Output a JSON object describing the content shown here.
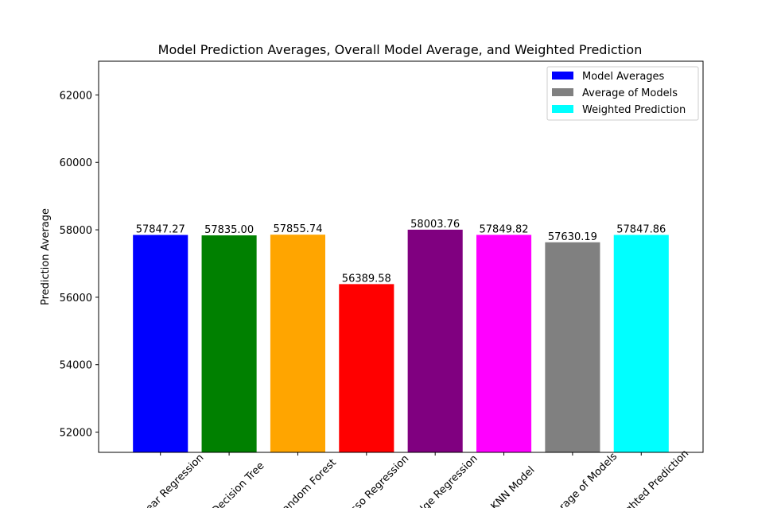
{
  "chart_data": {
    "type": "bar",
    "title": "Model Prediction Averages, Overall Model Average, and Weighted Prediction",
    "xlabel": "",
    "ylabel": "Prediction Average",
    "ylim": [
      51400,
      63000
    ],
    "yticks": [
      52000,
      54000,
      56000,
      58000,
      60000,
      62000
    ],
    "grid": false,
    "legend_position": "top-right",
    "categories": [
      "Linear Regression",
      "Decision Tree",
      "Random Forest",
      "Lasso Regression",
      "Ridge Regression",
      "KNN Model",
      "Average of Models",
      "Weighted Prediction"
    ],
    "values": [
      57847.27,
      57835.0,
      57855.74,
      56389.58,
      58003.76,
      57849.82,
      57630.19,
      57847.86
    ],
    "value_labels": [
      "57847.27",
      "57835.00",
      "57855.74",
      "56389.58",
      "58003.76",
      "57849.82",
      "57630.19",
      "57847.86"
    ],
    "colors": [
      "#0000ff",
      "#008000",
      "#ffa500",
      "#ff0000",
      "#800080",
      "#ff00ff",
      "#808080",
      "#00ffff"
    ],
    "legend": [
      {
        "label": "Model Averages",
        "color": "#0000ff"
      },
      {
        "label": "Average of Models",
        "color": "#808080"
      },
      {
        "label": "Weighted Prediction",
        "color": "#00ffff"
      }
    ]
  }
}
